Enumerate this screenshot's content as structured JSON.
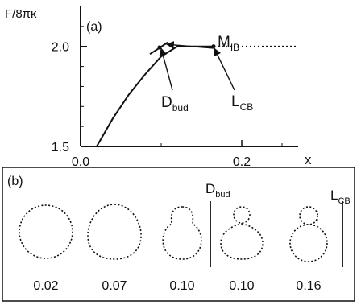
{
  "chart_data": [
    {
      "type": "line",
      "panel_label": "(a)",
      "ylabel": "F/8πκ",
      "xlabel": "x",
      "xlim": [
        0.0,
        0.27
      ],
      "ylim": [
        1.5,
        2.2
      ],
      "x_ticks": [
        {
          "value": 0.0,
          "label": "0.0"
        },
        {
          "value": 0.2,
          "label": "0.2"
        }
      ],
      "y_ticks": [
        {
          "value": 1.5,
          "label": "1.5"
        },
        {
          "value": 2.0,
          "label": "2.0"
        }
      ],
      "grid": false,
      "series": [
        {
          "role": "main-branch",
          "style": "solid",
          "x": [
            0.02,
            0.04,
            0.06,
            0.08,
            0.1,
            0.12,
            0.14,
            0.165
          ],
          "y": [
            1.5,
            1.64,
            1.76,
            1.86,
            1.95,
            2.0,
            2.0,
            2.0
          ]
        },
        {
          "role": "mib-branch",
          "style": "solid",
          "x": [
            0.086,
            0.097,
            0.108
          ],
          "y": [
            1.962,
            1.99,
            2.02
          ]
        },
        {
          "role": "lcb-continuation",
          "style": "dotted",
          "x": [
            0.165,
            0.27
          ],
          "y": [
            2.0,
            2.0
          ]
        }
      ],
      "markers": [
        {
          "x": 0.098,
          "y": 1.995
        },
        {
          "x": 0.165,
          "y": 2.0
        }
      ],
      "annotations": [
        {
          "text": "M",
          "sub": "IB",
          "arrow_to": {
            "x": 0.107,
            "y": 2.01
          }
        },
        {
          "text": "D",
          "sub": "bud",
          "arrow_to": {
            "x": 0.1,
            "y": 1.99
          }
        },
        {
          "text": "L",
          "sub": "CB",
          "arrow_to": {
            "x": 0.166,
            "y": 1.99
          }
        }
      ]
    },
    {
      "type": "shapes",
      "panel_label": "(b)",
      "shapes": [
        {
          "label": "0.02",
          "kind": "sphere"
        },
        {
          "label": "0.07",
          "kind": "pear"
        },
        {
          "label": "0.10",
          "kind": "bulge"
        },
        {
          "label": "0.10",
          "kind": "bud-neck"
        },
        {
          "label": "0.16",
          "kind": "bud-touching"
        }
      ],
      "dividers": [
        {
          "text": "D",
          "sub": "bud",
          "after_shape": 2
        },
        {
          "text": "L",
          "sub": "CB",
          "after_shape": 4
        }
      ]
    }
  ]
}
